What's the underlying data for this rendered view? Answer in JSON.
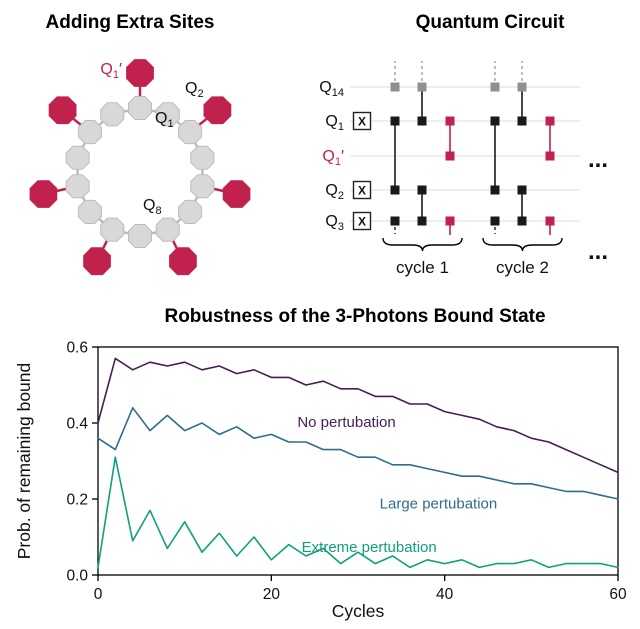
{
  "panels": {
    "ring": {
      "title": "Adding Extra Sites",
      "num_sites": 14,
      "extra_site_indices": [
        0,
        2,
        4,
        6,
        8,
        10,
        12
      ],
      "labels": [
        {
          "base": "Q",
          "sub": "1",
          "prime": "′",
          "color": "#c0214d"
        },
        {
          "base": "Q",
          "sub": "2"
        },
        {
          "base": "Q",
          "sub": "1"
        },
        {
          "base": "Q",
          "sub": "8"
        }
      ]
    },
    "circuit": {
      "title": "Quantum Circuit",
      "qubit_rows": [
        {
          "base": "Q",
          "sub": "14"
        },
        {
          "base": "Q",
          "sub": "1"
        },
        {
          "base": "Q",
          "sub": "1",
          "prime": "′",
          "color": "#c0214d"
        },
        {
          "base": "Q",
          "sub": "2"
        },
        {
          "base": "Q",
          "sub": "3"
        }
      ],
      "x_gate_label": "X",
      "x_gate_row_indices": [
        1,
        3,
        4
      ],
      "cycle_labels": [
        "cycle 1",
        "cycle 2"
      ],
      "ellipsis": "..."
    }
  },
  "colors": {
    "crimson": "#c0214d",
    "site_gray": "#d8d8d8",
    "site_gray_stroke": "#bdbdbd",
    "gate_black": "#1a1a1a",
    "gate_gray": "#8f8f8f",
    "row_line": "#e4e4e4"
  },
  "chart_data": {
    "type": "line",
    "title": "Robustness of the 3-Photons Bound State",
    "xlabel": "Cycles",
    "ylabel": "Prob. of remaining bound",
    "xlim": [
      0,
      60
    ],
    "ylim": [
      0,
      0.6
    ],
    "grid": false,
    "legend": "inline-annotations",
    "xticks": [
      {
        "v": 0,
        "label": "0"
      },
      {
        "v": 20,
        "label": "20"
      },
      {
        "v": 40,
        "label": "40"
      },
      {
        "v": 60,
        "label": "60"
      }
    ],
    "yticks": [
      {
        "v": 0,
        "label": "0.0"
      },
      {
        "v": 0.2,
        "label": "0.2"
      },
      {
        "v": 0.4,
        "label": "0.4"
      },
      {
        "v": 0.6,
        "label": "0.6"
      }
    ],
    "x": [
      0,
      2,
      4,
      6,
      8,
      10,
      12,
      14,
      16,
      18,
      20,
      22,
      24,
      26,
      28,
      30,
      32,
      34,
      36,
      38,
      40,
      42,
      44,
      46,
      48,
      50,
      52,
      54,
      56,
      58,
      60
    ],
    "series": [
      {
        "name": "No pertubation",
        "color": "#461d54",
        "values": [
          0.4,
          0.57,
          0.54,
          0.56,
          0.55,
          0.56,
          0.54,
          0.55,
          0.53,
          0.54,
          0.52,
          0.52,
          0.5,
          0.51,
          0.49,
          0.49,
          0.47,
          0.47,
          0.45,
          0.45,
          0.43,
          0.42,
          0.41,
          0.39,
          0.38,
          0.36,
          0.35,
          0.33,
          0.31,
          0.29,
          0.27
        ]
      },
      {
        "name": "Large pertubation",
        "color": "#2e6d8e",
        "values": [
          0.36,
          0.33,
          0.44,
          0.38,
          0.42,
          0.38,
          0.4,
          0.37,
          0.39,
          0.36,
          0.37,
          0.35,
          0.35,
          0.33,
          0.33,
          0.31,
          0.31,
          0.29,
          0.29,
          0.28,
          0.27,
          0.26,
          0.26,
          0.25,
          0.24,
          0.24,
          0.23,
          0.22,
          0.22,
          0.21,
          0.2
        ]
      },
      {
        "name": "Extreme pertubation",
        "color": "#0ea17b",
        "values": [
          0.02,
          0.31,
          0.09,
          0.17,
          0.07,
          0.14,
          0.06,
          0.11,
          0.05,
          0.1,
          0.04,
          0.08,
          0.05,
          0.07,
          0.03,
          0.06,
          0.03,
          0.05,
          0.02,
          0.04,
          0.03,
          0.04,
          0.02,
          0.03,
          0.03,
          0.04,
          0.02,
          0.03,
          0.03,
          0.03,
          0.02
        ]
      }
    ],
    "annotations": [
      {
        "text": "No pertubation",
        "x": 23,
        "y": 0.39,
        "color": "#461d54"
      },
      {
        "text": "Large pertubation",
        "x": 32.5,
        "y": 0.175,
        "color": "#2e6d8e"
      },
      {
        "text": "Extreme pertubation",
        "x": 23.5,
        "y": 0.06,
        "color": "#0ea17b"
      }
    ]
  }
}
